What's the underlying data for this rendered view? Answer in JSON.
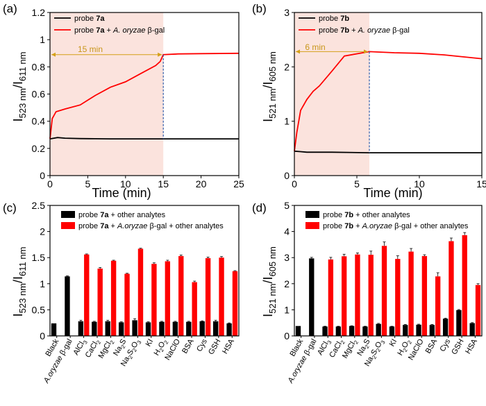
{
  "panels": [
    {
      "label": "(a)",
      "ylabel": "I523 nm/I611 nm",
      "ylabel_main_1": "I",
      "ylabel_sub_1": "523 nm",
      "ylabel_sep": "/",
      "ylabel_main_2": "I",
      "ylabel_sub_2": "611 nm",
      "xlabel": "Time (min)",
      "annotation": "15 min"
    },
    {
      "label": "(b)",
      "ylabel": "I521 nm/I605 nm",
      "ylabel_main_1": "I",
      "ylabel_sub_1": "521 nm",
      "ylabel_sep": "/",
      "ylabel_main_2": "I",
      "ylabel_sub_2": "605 nm",
      "xlabel": "Time (min)",
      "annotation": "6 min"
    },
    {
      "label": "(c)",
      "ylabel": "I523 nm/I611 nm",
      "ylabel_main_1": "I",
      "ylabel_sub_1": "523 nm",
      "ylabel_sep": "/",
      "ylabel_main_2": "I",
      "ylabel_sub_2": "611 nm",
      "xlabel": ""
    },
    {
      "label": "(d)",
      "ylabel": "I521 nm/I605 nm",
      "ylabel_main_1": "I",
      "ylabel_sub_1": "521 nm",
      "ylabel_sep": "/",
      "ylabel_main_2": "I",
      "ylabel_sub_2": "605 nm",
      "xlabel": ""
    }
  ],
  "colors": {
    "probe": "#000000",
    "enzyme": "#ff0000",
    "shade": "#fbe3dd",
    "arrow": "#d4a017",
    "dash": "#2f5aa8"
  },
  "chart_data": [
    {
      "type": "line",
      "panel": "(a)",
      "xlabel": "Time (min)",
      "ylabel": "I523 nm/I611 nm",
      "xlim": [
        0,
        25
      ],
      "ylim": [
        0,
        1.2
      ],
      "xticks": [
        0,
        5,
        10,
        15,
        20,
        25
      ],
      "yticks": [
        0,
        0.2,
        0.4,
        0.6,
        0.8,
        1.0,
        1.2
      ],
      "legend_placement": "top-left",
      "shaded_region_x": [
        0,
        15
      ],
      "marker_x": 15,
      "series": [
        {
          "name": "probe 7a",
          "color": "#000000",
          "x": [
            0,
            1,
            2,
            4,
            6,
            8,
            10,
            12,
            14,
            15,
            20,
            25
          ],
          "y": [
            0.27,
            0.28,
            0.275,
            0.272,
            0.271,
            0.27,
            0.27,
            0.27,
            0.27,
            0.27,
            0.27,
            0.27
          ]
        },
        {
          "name": "probe 7a + A. oryzae β-gal",
          "color": "#ff0000",
          "x": [
            0,
            0.3,
            0.8,
            2,
            4,
            6,
            8,
            10,
            12,
            14,
            14.6,
            15,
            17,
            20,
            25
          ],
          "y": [
            0.27,
            0.42,
            0.47,
            0.49,
            0.52,
            0.59,
            0.65,
            0.69,
            0.75,
            0.81,
            0.84,
            0.89,
            0.895,
            0.897,
            0.9
          ]
        }
      ]
    },
    {
      "type": "line",
      "panel": "(b)",
      "xlabel": "Time (min)",
      "ylabel": "I521 nm/I605 nm",
      "xlim": [
        0,
        15
      ],
      "ylim": [
        0,
        3.0
      ],
      "xticks": [
        0,
        5,
        10,
        15
      ],
      "yticks": [
        0,
        1.0,
        2.0,
        3.0
      ],
      "legend_placement": "top-left",
      "shaded_region_x": [
        0,
        6
      ],
      "marker_x": 6,
      "series": [
        {
          "name": "probe 7b",
          "color": "#000000",
          "x": [
            0,
            0.5,
            1,
            3,
            6,
            10,
            15
          ],
          "y": [
            0.45,
            0.44,
            0.43,
            0.43,
            0.42,
            0.42,
            0.42
          ]
        },
        {
          "name": "probe 7b + A. oryzae β-gal",
          "color": "#ff0000",
          "x": [
            0,
            0.2,
            0.5,
            1,
            1.5,
            2,
            3,
            4,
            6,
            8,
            10,
            12,
            15
          ],
          "y": [
            0.45,
            0.8,
            1.2,
            1.4,
            1.55,
            1.65,
            1.92,
            2.2,
            2.28,
            2.26,
            2.25,
            2.22,
            2.15
          ]
        }
      ]
    },
    {
      "type": "bar",
      "panel": "(c)",
      "ylabel": "I523 nm/I611 nm",
      "ylim": [
        0,
        2.5
      ],
      "yticks": [
        0,
        0.5,
        1.0,
        1.5,
        2.0,
        2.5
      ],
      "legend_placement": "top",
      "categories": [
        "Black",
        "A.oryzae β-gal",
        "AlCl3",
        "CaCl2",
        "MgCl2",
        "Na2S",
        "Na2S2O3",
        "KI",
        "H2O2",
        "NaClO",
        "BSA",
        "Cys",
        "GSH",
        "HSA"
      ],
      "series": [
        {
          "name": "probe 7a + other analytes",
          "color": "#000000",
          "values": [
            0.24,
            1.14,
            0.28,
            0.27,
            0.28,
            0.26,
            0.3,
            0.26,
            0.27,
            0.27,
            0.27,
            0.28,
            0.28,
            0.24
          ],
          "errors": [
            0.0,
            0.01,
            0.02,
            0.01,
            0.02,
            0.01,
            0.03,
            0.01,
            0.01,
            0.01,
            0.01,
            0.01,
            0.02,
            0.01
          ]
        },
        {
          "name": "probe 7a + A.oryzae β-gal + other analytes",
          "color": "#ff0000",
          "values": [
            null,
            null,
            1.56,
            1.29,
            1.44,
            1.19,
            1.67,
            1.38,
            1.43,
            1.53,
            1.03,
            1.49,
            1.5,
            1.24
          ],
          "errors": [
            0,
            0,
            0.01,
            0.02,
            0.01,
            0.01,
            0.01,
            0.02,
            0.02,
            0.02,
            0.02,
            0.02,
            0.02,
            0.01
          ]
        }
      ]
    },
    {
      "type": "bar",
      "panel": "(d)",
      "ylabel": "I521 nm/I605 nm",
      "ylim": [
        0,
        5
      ],
      "yticks": [
        0,
        1,
        2,
        3,
        4,
        5
      ],
      "legend_placement": "top",
      "categories": [
        "Black",
        "A.oryzae β-gal",
        "AlCl3",
        "CaCl2",
        "MgCl2",
        "Na2S",
        "Na2S2O3",
        "KI",
        "H2O2",
        "NaClO",
        "BSA",
        "Cys",
        "GSH",
        "HSA"
      ],
      "series": [
        {
          "name": "probe 7b + other analytes",
          "color": "#000000",
          "values": [
            0.38,
            2.97,
            0.36,
            0.36,
            0.38,
            0.36,
            0.46,
            0.36,
            0.42,
            0.43,
            0.42,
            0.66,
            0.99,
            0.49
          ],
          "errors": [
            0.0,
            0.04,
            0.01,
            0.01,
            0.01,
            0.01,
            0.02,
            0.01,
            0.02,
            0.02,
            0.02,
            0.02,
            0.02,
            0.02
          ]
        },
        {
          "name": "probe 7b + A.oryzae β-gal + other analytes",
          "color": "#ff0000",
          "values": [
            null,
            null,
            2.93,
            3.05,
            3.12,
            3.11,
            3.45,
            2.95,
            3.23,
            3.06,
            2.28,
            3.63,
            3.86,
            1.95
          ],
          "errors": [
            0,
            0,
            0.08,
            0.08,
            0.06,
            0.14,
            0.15,
            0.12,
            0.12,
            0.05,
            0.14,
            0.12,
            0.1,
            0.05
          ]
        }
      ]
    }
  ]
}
